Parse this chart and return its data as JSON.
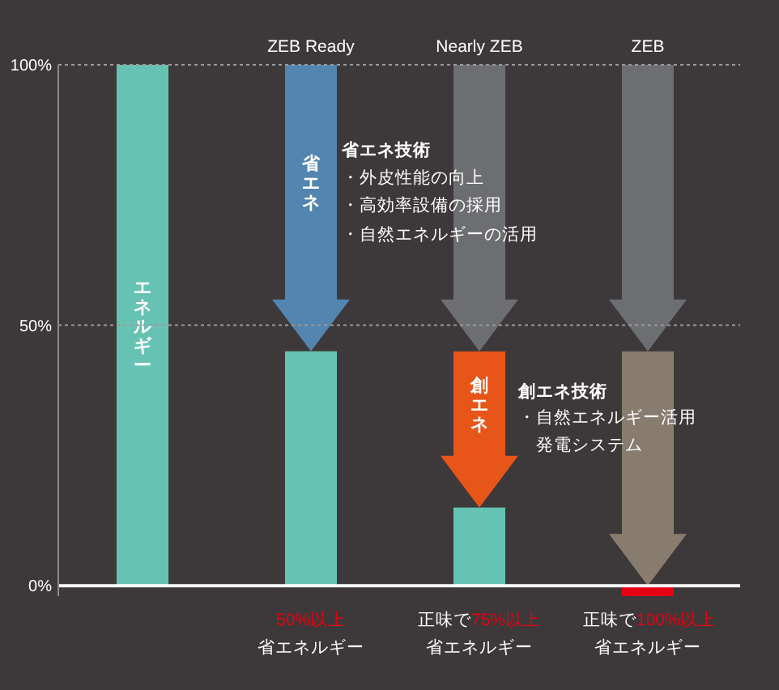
{
  "chart_data": {
    "type": "bar",
    "categories": [
      null,
      "ZEB Ready",
      "Nearly ZEB",
      "ZEB"
    ],
    "series": [
      {
        "name": "エネルギー",
        "color": "#66c2b2",
        "values": [
          100,
          45,
          15,
          null
        ]
      },
      {
        "name": "省エネ",
        "colors": [
          null,
          "#5285b0",
          "#6d6e72",
          "#6d6e72"
        ],
        "base": [
          null,
          100,
          100,
          100
        ],
        "values": [
          null,
          -55,
          -55,
          -55
        ]
      },
      {
        "name": "創エネ",
        "colors": [
          null,
          null,
          "#e85518",
          "#877c6e"
        ],
        "base": [
          null,
          null,
          45,
          45
        ],
        "values": [
          null,
          null,
          -30,
          -45
        ]
      },
      {
        "color": "#e60012",
        "values": [
          null,
          null,
          null,
          -2
        ]
      }
    ],
    "ylim": [
      -2,
      100
    ],
    "yticks": [
      {
        "value": 0,
        "label": "0%"
      },
      {
        "value": 50,
        "label": "50%"
      },
      {
        "value": 100,
        "label": "100%"
      }
    ],
    "ref_lines": [
      {
        "axis": "y",
        "value": 100,
        "line_style": "dotted",
        "color": "#9a9a9a"
      },
      {
        "axis": "y",
        "value": 50,
        "line_style": "dotted",
        "color": "#9a9a9a"
      },
      {
        "axis": "y",
        "value": 0,
        "color": "#ffffff"
      }
    ],
    "annotations": [
      "省エネ技術",
      "・外皮性能の向上",
      "・高効率設備の採用",
      "・自然エネルギーの活用",
      "創エネ技術",
      "・自然エネルギー活用発電システム",
      "50%以上",
      "省エネルギー",
      "正味で",
      "75%以上",
      "省エネルギー",
      "正味で",
      "100%以上",
      "省エネルギー"
    ]
  }
}
